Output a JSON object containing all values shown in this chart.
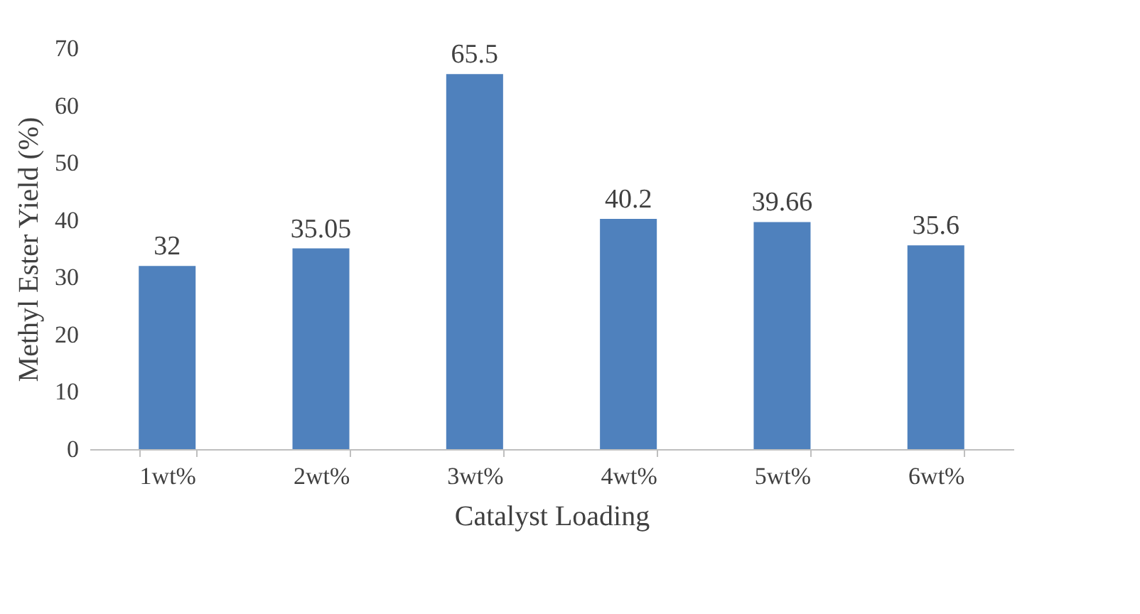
{
  "chart_data": {
    "type": "bar",
    "xlabel": "Catalyst Loading",
    "ylabel": "Methyl Ester Yield (%)",
    "categories": [
      "1wt%",
      "2wt%",
      "3wt%",
      "4wt%",
      "5wt%",
      "6wt%"
    ],
    "values": [
      32,
      35.05,
      65.5,
      40.2,
      39.66,
      35.6
    ],
    "color": "#4f81bd",
    "ylim": [
      0,
      70
    ],
    "yticks": [
      0,
      10,
      20,
      30,
      40,
      50,
      60,
      70
    ],
    "data_labels": true,
    "grid": false
  }
}
